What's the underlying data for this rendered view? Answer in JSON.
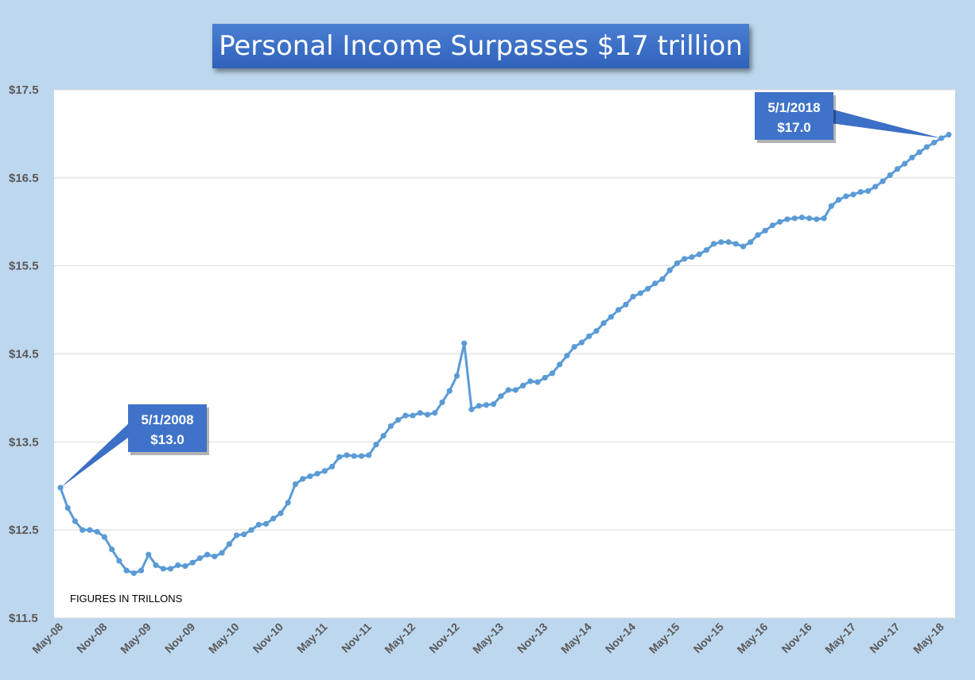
{
  "chart_data": {
    "type": "line",
    "title": "Personal Income Surpasses $17 trillion",
    "xlabel": "",
    "ylabel": "",
    "ylim": [
      11.5,
      17.5
    ],
    "y_ticks": [
      "$11.5",
      "$12.5",
      "$13.5",
      "$14.5",
      "$15.5",
      "$16.5",
      "$17.5"
    ],
    "y_tick_values": [
      11.5,
      12.5,
      13.5,
      14.5,
      15.5,
      16.5,
      17.5
    ],
    "x_tick_labels": [
      "May-08",
      "Nov-08",
      "May-09",
      "Nov-09",
      "May-10",
      "Nov-10",
      "May-11",
      "Nov-11",
      "May-12",
      "Nov-12",
      "May-13",
      "Nov-13",
      "May-14",
      "Nov-14",
      "May-15",
      "Nov-15",
      "May-16",
      "Nov-16",
      "May-17",
      "Nov-17",
      "May-18"
    ],
    "x_start": "May-08",
    "x_end": "May-18",
    "grid": true,
    "series": [
      {
        "color": "#5b9bd5",
        "values": [
          12.98,
          12.75,
          12.6,
          12.5,
          12.5,
          12.48,
          12.42,
          12.28,
          12.15,
          12.04,
          12.01,
          12.04,
          12.22,
          12.1,
          12.06,
          12.06,
          12.1,
          12.09,
          12.13,
          12.18,
          12.22,
          12.2,
          12.24,
          12.34,
          12.44,
          12.45,
          12.5,
          12.56,
          12.57,
          12.63,
          12.69,
          12.81,
          13.02,
          13.08,
          13.11,
          13.14,
          13.17,
          13.22,
          13.33,
          13.35,
          13.34,
          13.34,
          13.35,
          13.47,
          13.57,
          13.68,
          13.75,
          13.8,
          13.8,
          13.83,
          13.81,
          13.83,
          13.95,
          14.08,
          14.25,
          14.62,
          13.87,
          13.91,
          13.92,
          13.93,
          14.02,
          14.09,
          14.09,
          14.14,
          14.19,
          14.18,
          14.23,
          14.28,
          14.38,
          14.48,
          14.58,
          14.63,
          14.7,
          14.76,
          14.85,
          14.92,
          15.0,
          15.06,
          15.15,
          15.19,
          15.24,
          15.3,
          15.35,
          15.45,
          15.53,
          15.58,
          15.6,
          15.63,
          15.68,
          15.75,
          15.77,
          15.77,
          15.75,
          15.72,
          15.77,
          15.85,
          15.9,
          15.96,
          16.0,
          16.03,
          16.04,
          16.05,
          16.04,
          16.03,
          16.04,
          16.18,
          16.25,
          16.29,
          16.31,
          16.34,
          16.35,
          16.4,
          16.46,
          16.53,
          16.6,
          16.66,
          16.73,
          16.79,
          16.85,
          16.9,
          16.95,
          16.99
        ]
      }
    ],
    "annotations": [
      {
        "date": "5/1/2008",
        "value": "$13.0",
        "point_index": 0
      },
      {
        "date": "5/1/2018",
        "value": "$17.0",
        "point_index": 120
      }
    ],
    "note": "FIGURES IN TRILLONS"
  }
}
